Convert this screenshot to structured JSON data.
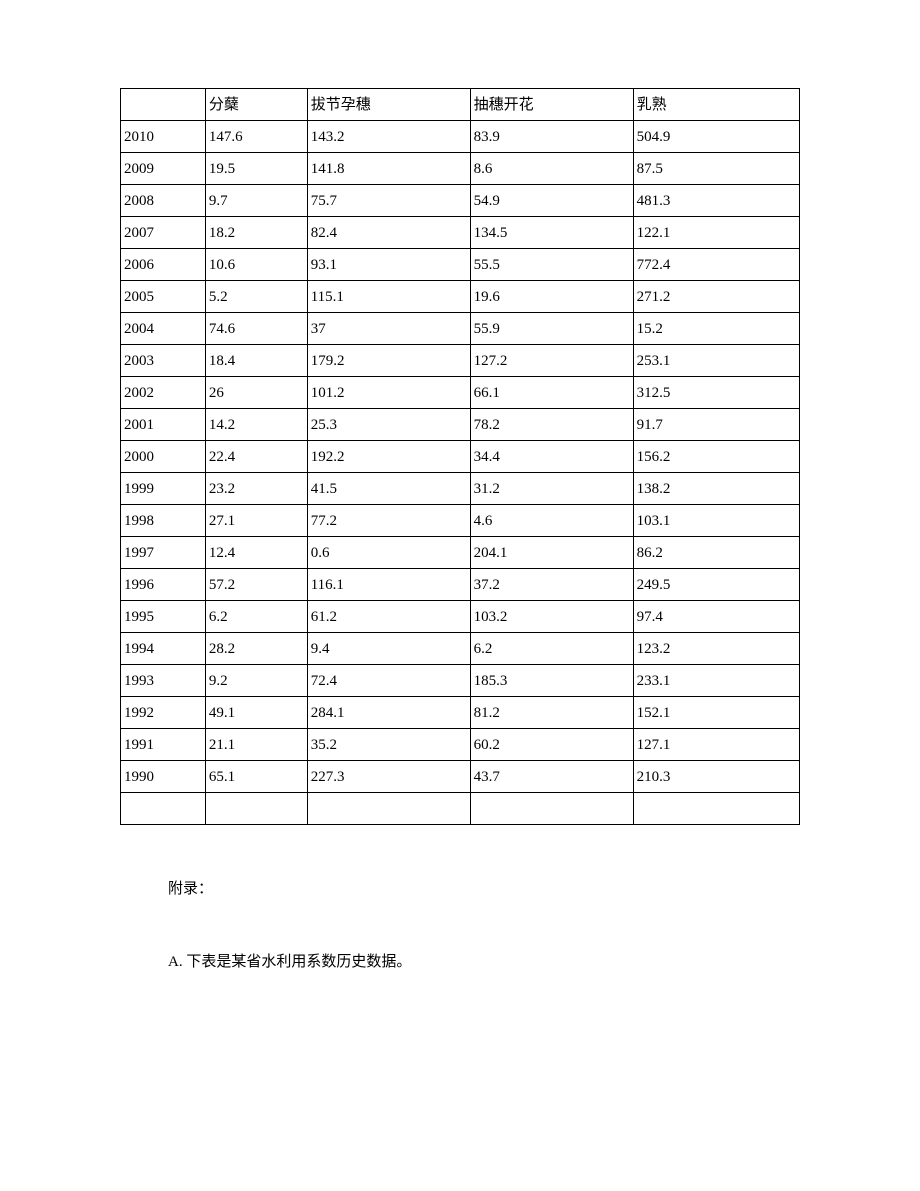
{
  "table": {
    "border_color": "#000000",
    "background_color": "#ffffff",
    "text_color": "#000000",
    "font_family": "SimSun",
    "font_size": 15,
    "columns": [
      "",
      "分蘖",
      "拔节孕穗",
      "抽穗开花",
      "乳熟"
    ],
    "rows": [
      [
        "2010",
        "147.6",
        "143.2",
        "83.9",
        "504.9"
      ],
      [
        "2009",
        "19.5",
        "141.8",
        "8.6",
        "87.5"
      ],
      [
        "2008",
        "9.7",
        "75.7",
        "54.9",
        "481.3"
      ],
      [
        "2007",
        "18.2",
        "82.4",
        "134.5",
        "122.1"
      ],
      [
        "2006",
        "10.6",
        "93.1",
        "55.5",
        "772.4"
      ],
      [
        "2005",
        "5.2",
        "115.1",
        "19.6",
        "271.2"
      ],
      [
        "2004",
        "74.6",
        "37",
        "55.9",
        "15.2"
      ],
      [
        "2003",
        "18.4",
        "179.2",
        "127.2",
        "253.1"
      ],
      [
        "2002",
        "26",
        "101.2",
        "66.1",
        "312.5"
      ],
      [
        "2001",
        "14.2",
        "25.3",
        "78.2",
        "91.7"
      ],
      [
        "2000",
        "22.4",
        "192.2",
        "34.4",
        "156.2"
      ],
      [
        "1999",
        "23.2",
        "41.5",
        "31.2",
        "138.2"
      ],
      [
        "1998",
        "27.1",
        "77.2",
        "4.6",
        "103.1"
      ],
      [
        "1997",
        "12.4",
        "0.6",
        "204.1",
        "86.2"
      ],
      [
        "1996",
        "57.2",
        "116.1",
        "37.2",
        "249.5"
      ],
      [
        "1995",
        "6.2",
        "61.2",
        "103.2",
        "97.4"
      ],
      [
        "1994",
        "28.2",
        "9.4",
        "6.2",
        "123.2"
      ],
      [
        "1993",
        "9.2",
        "72.4",
        "185.3",
        "233.1"
      ],
      [
        "1992",
        "49.1",
        "284.1",
        "81.2",
        "152.1"
      ],
      [
        "1991",
        "21.1",
        "35.2",
        "60.2",
        "127.1"
      ],
      [
        "1990",
        "65.1",
        "227.3",
        "43.7",
        "210.3"
      ],
      [
        "",
        "",
        "",
        "",
        ""
      ]
    ]
  },
  "appendix": {
    "label": "附录：",
    "text": "A. 下表是某省水利用系数历史数据。"
  }
}
